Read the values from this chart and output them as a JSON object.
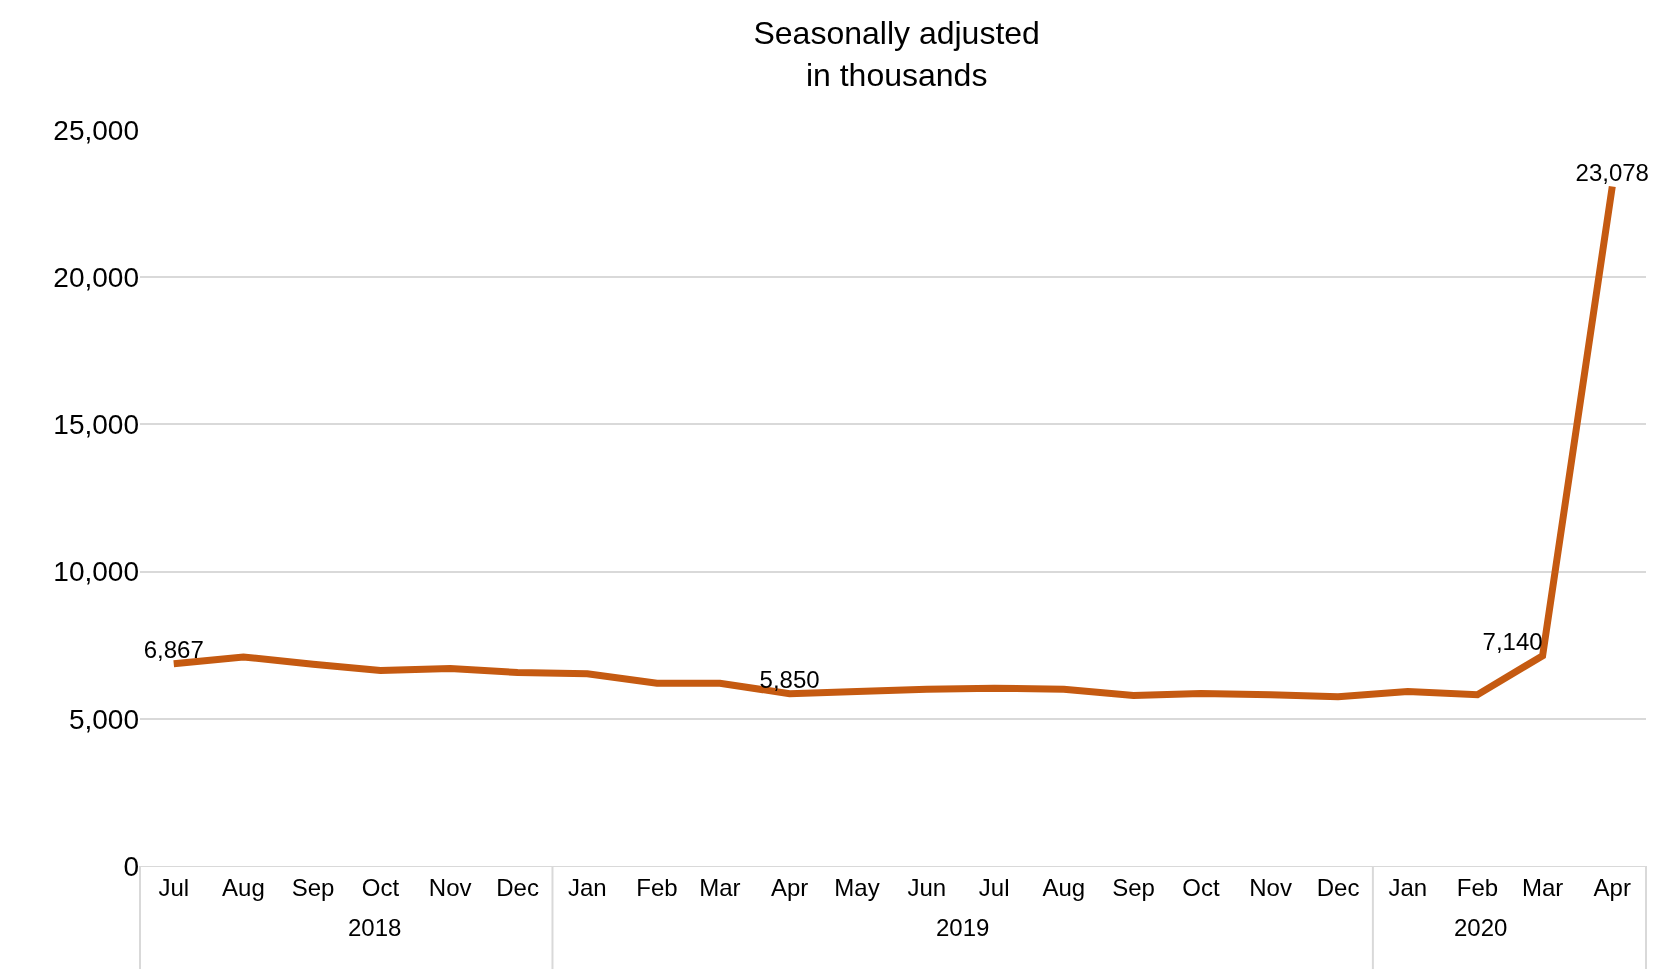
{
  "chart_data": {
    "type": "line",
    "title": "Seasonally adjusted\nin thousands",
    "x": [
      "2018-07",
      "2018-08",
      "2018-09",
      "2018-10",
      "2018-11",
      "2018-12",
      "2019-01",
      "2019-02",
      "2019-03",
      "2019-04",
      "2019-05",
      "2019-06",
      "2019-07",
      "2019-08",
      "2019-09",
      "2019-10",
      "2019-11",
      "2019-12",
      "2020-01",
      "2020-02",
      "2020-03",
      "2020-04"
    ],
    "series": [
      {
        "color": "#c55a11",
        "values": [
          6867,
          7100,
          6850,
          6640,
          6710,
          6570,
          6530,
          6210,
          6210,
          5850,
          5930,
          6000,
          6040,
          6000,
          5790,
          5860,
          5820,
          5750,
          5930,
          5820,
          7140,
          23078
        ],
        "value_labels": [
          "6,867",
          null,
          null,
          null,
          null,
          null,
          null,
          null,
          null,
          "5,850",
          null,
          null,
          null,
          null,
          null,
          null,
          null,
          null,
          null,
          null,
          "7,140",
          "23,078"
        ]
      }
    ],
    "xlim": [
      "2018-06-16",
      "2020-04-16"
    ],
    "xticks": [
      {
        "value": "2018-07",
        "label": "Jul"
      },
      {
        "value": "2018-08",
        "label": "Aug"
      },
      {
        "value": "2018-09",
        "label": "Sep"
      },
      {
        "value": "2018-10",
        "label": "Oct"
      },
      {
        "value": "2018-11",
        "label": "Nov"
      },
      {
        "value": "2018-12",
        "label": "Dec"
      },
      {
        "value": "2019-01",
        "label": "Jan"
      },
      {
        "value": "2019-02",
        "label": "Feb"
      },
      {
        "value": "2019-03",
        "label": "Mar"
      },
      {
        "value": "2019-04",
        "label": "Apr"
      },
      {
        "value": "2019-05",
        "label": "May"
      },
      {
        "value": "2019-06",
        "label": "Jun"
      },
      {
        "value": "2019-07",
        "label": "Jul"
      },
      {
        "value": "2019-08",
        "label": "Aug"
      },
      {
        "value": "2019-09",
        "label": "Sep"
      },
      {
        "value": "2019-10",
        "label": "Oct"
      },
      {
        "value": "2019-11",
        "label": "Nov"
      },
      {
        "value": "2019-12",
        "label": "Dec"
      },
      {
        "value": "2020-01",
        "label": "Jan"
      },
      {
        "value": "2020-02",
        "label": "Feb"
      },
      {
        "value": "2020-03",
        "label": "Mar"
      },
      {
        "value": "2020-04",
        "label": "Apr"
      }
    ],
    "ylim": [
      0,
      25000
    ],
    "yticks": [
      {
        "value": 0,
        "label": "0"
      },
      {
        "value": 5000,
        "label": "5,000"
      },
      {
        "value": 10000,
        "label": "10,000"
      },
      {
        "value": 15000,
        "label": "15,000"
      },
      {
        "value": 20000,
        "label": "20,000"
      },
      {
        "value": 25000,
        "label": "25,000"
      }
    ],
    "annotations": [
      "2018",
      "2019",
      "2020"
    ],
    "grid": "y",
    "marker": "none",
    "line_style": "solid"
  }
}
